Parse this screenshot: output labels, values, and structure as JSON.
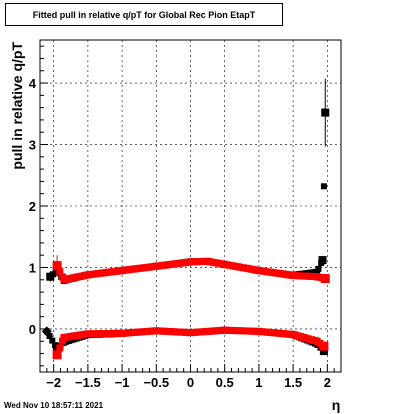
{
  "title": "Fitted pull in relative q/pT for Global Rec Pion EtapT",
  "timestamp": "Wed Nov 10 18:57:11 2021",
  "chart_data": {
    "type": "scatter",
    "title": "Fitted pull in relative q/pT for Global Rec Pion EtapT",
    "xlabel": "η",
    "ylabel": "pull in relative q/pT",
    "xlim": [
      -2.2,
      2.2
    ],
    "ylim": [
      -0.7,
      4.7
    ],
    "xticks": [
      -2,
      -1.5,
      -1,
      -0.5,
      0,
      0.5,
      1,
      1.5,
      2
    ],
    "xtick_labels": [
      "−2",
      "−1.5",
      "−1",
      "−0.5",
      "0",
      "0.5",
      "1",
      "1.5",
      "2"
    ],
    "yticks": [
      0,
      1,
      2,
      3,
      4
    ],
    "ytick_labels": [
      "0",
      "1",
      "2",
      "3",
      "4"
    ],
    "grid": true,
    "series": [
      {
        "color": "#000000",
        "marker": "square",
        "role": "mean",
        "label_hint": "",
        "points": [
          [
            -2.05,
            0.85,
            0.08
          ],
          [
            -1.95,
            0.95,
            0.1
          ],
          [
            -1.85,
            0.78,
            0.03
          ],
          [
            -1.5,
            0.88,
            0.02
          ],
          [
            -1.0,
            0.96,
            0.02
          ],
          [
            -0.5,
            1.02,
            0.02
          ],
          [
            0.0,
            1.1,
            0.02
          ],
          [
            0.25,
            1.1,
            0.02
          ],
          [
            0.5,
            1.05,
            0.02
          ],
          [
            1.0,
            0.95,
            0.02
          ],
          [
            1.5,
            0.88,
            0.02
          ],
          [
            1.85,
            0.93,
            0.04
          ],
          [
            1.93,
            1.12,
            0.05
          ],
          [
            1.97,
            3.52,
            0.55
          ]
        ]
      },
      {
        "color": "#ff0000",
        "marker": "square",
        "role": "mean",
        "points": [
          [
            -1.95,
            1.03,
            0.17
          ],
          [
            -1.85,
            0.8,
            0.04
          ],
          [
            -1.5,
            0.88,
            0.02
          ],
          [
            -1.0,
            0.95,
            0.02
          ],
          [
            -0.5,
            1.02,
            0.02
          ],
          [
            0.0,
            1.09,
            0.02
          ],
          [
            0.25,
            1.1,
            0.02
          ],
          [
            0.5,
            1.05,
            0.02
          ],
          [
            1.0,
            0.95,
            0.02
          ],
          [
            1.5,
            0.87,
            0.02
          ],
          [
            1.85,
            0.85,
            0.03
          ],
          [
            1.97,
            0.82,
            0.05
          ]
        ]
      },
      {
        "color": "#000000",
        "marker": "square",
        "role": "sigma",
        "points": [
          [
            -2.1,
            -0.04,
            0.03
          ],
          [
            -1.95,
            -0.32,
            0.04
          ],
          [
            -1.85,
            -0.22,
            0.03
          ],
          [
            -1.5,
            -0.1,
            0.02
          ],
          [
            -1.0,
            -0.08,
            0.02
          ],
          [
            -0.5,
            -0.03,
            0.02
          ],
          [
            0.0,
            -0.06,
            0.02
          ],
          [
            0.5,
            -0.02,
            0.02
          ],
          [
            1.0,
            -0.04,
            0.02
          ],
          [
            1.5,
            -0.1,
            0.02
          ],
          [
            1.85,
            -0.25,
            0.03
          ],
          [
            1.95,
            -0.36,
            0.04
          ]
        ]
      },
      {
        "color": "#ff0000",
        "marker": "square",
        "role": "sigma",
        "points": [
          [
            -1.95,
            -0.42,
            0.06
          ],
          [
            -1.85,
            -0.14,
            0.03
          ],
          [
            -1.5,
            -0.08,
            0.02
          ],
          [
            -1.0,
            -0.07,
            0.02
          ],
          [
            -0.5,
            -0.03,
            0.02
          ],
          [
            0.0,
            -0.06,
            0.02
          ],
          [
            0.5,
            -0.02,
            0.02
          ],
          [
            1.0,
            -0.04,
            0.02
          ],
          [
            1.5,
            -0.09,
            0.02
          ],
          [
            1.85,
            -0.2,
            0.03
          ],
          [
            1.95,
            -0.28,
            0.04
          ]
        ]
      }
    ]
  }
}
